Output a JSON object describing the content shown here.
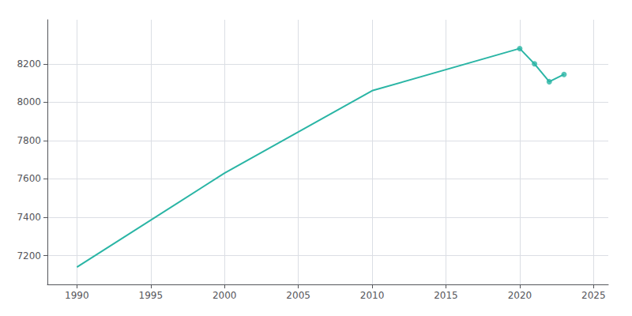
{
  "chart_data": {
    "type": "line",
    "x": [
      1990,
      2000,
      2010,
      2020,
      2021,
      2022,
      2023
    ],
    "series": [
      {
        "type": "line",
        "color": "#2ab5a5",
        "marker": "none",
        "line_style": "solid",
        "values": [
          7140,
          7630,
          8060,
          8280,
          8200,
          8107,
          8145
        ]
      },
      {
        "type": "scatter",
        "color": "#2ab5a5",
        "marker": "circle",
        "values": [
          null,
          null,
          null,
          8280,
          8200,
          8107,
          8145
        ]
      }
    ],
    "xlim": [
      1988,
      2026
    ],
    "xticks": [
      1990,
      1995,
      2000,
      2005,
      2010,
      2015,
      2020,
      2025
    ],
    "ylim": [
      7050,
      8430
    ],
    "yticks": [
      7200,
      7400,
      7600,
      7800,
      8000,
      8200
    ],
    "grid": true
  }
}
